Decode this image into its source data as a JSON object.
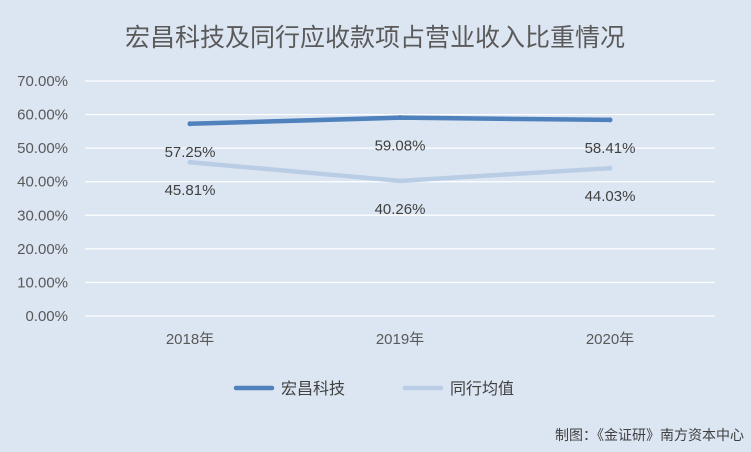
{
  "chart_data": {
    "type": "line",
    "title": "宏昌科技及同行应收款项占营业收入比重情况",
    "categories": [
      "2018年",
      "2019年",
      "2020年"
    ],
    "yticks": [
      "0.00%",
      "10.00%",
      "20.00%",
      "30.00%",
      "40.00%",
      "50.00%",
      "60.00%",
      "70.00%"
    ],
    "ylim": [
      0,
      70
    ],
    "grid": true,
    "legend_position": "bottom",
    "series": [
      {
        "name": "宏昌科技",
        "values": [
          57.25,
          59.08,
          58.41
        ],
        "labels": [
          "57.25%",
          "59.08%",
          "58.41%"
        ],
        "color": "#4f81bd"
      },
      {
        "name": "同行均值",
        "values": [
          45.81,
          40.26,
          44.03
        ],
        "labels": [
          "45.81%",
          "40.26%",
          "44.03%"
        ],
        "color": "#b9cde5"
      }
    ]
  },
  "footer": {
    "credit": "制图：《金证研》南方资本中心"
  }
}
